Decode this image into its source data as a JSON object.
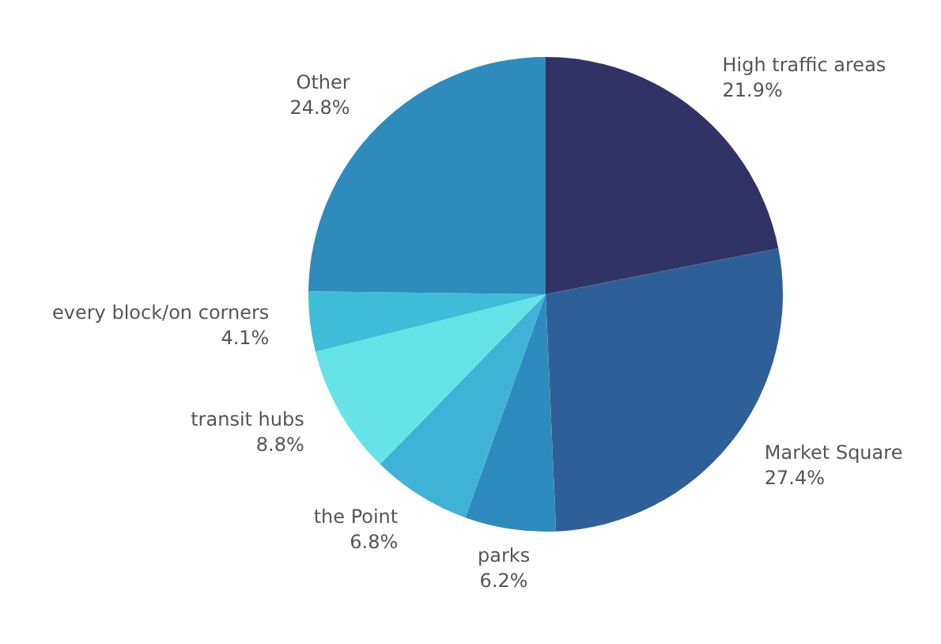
{
  "chart_data": {
    "type": "pie",
    "categories": [
      "High traffic areas",
      "Market Square",
      "parks",
      "the Point",
      "transit hubs",
      "every block/on corners",
      "Other"
    ],
    "values": [
      21.9,
      27.4,
      6.2,
      6.8,
      8.8,
      4.1,
      24.8
    ],
    "value_labels": [
      "21.9%",
      "27.4%",
      "6.2%",
      "6.8%",
      "8.8%",
      "4.1%",
      "24.8%"
    ],
    "colors": [
      "#313366",
      "#2e5f98",
      "#2e8bbd",
      "#3fb3d6",
      "#66e3e8",
      "#3fbcd8",
      "#2e8cbd"
    ],
    "legend": false
  }
}
